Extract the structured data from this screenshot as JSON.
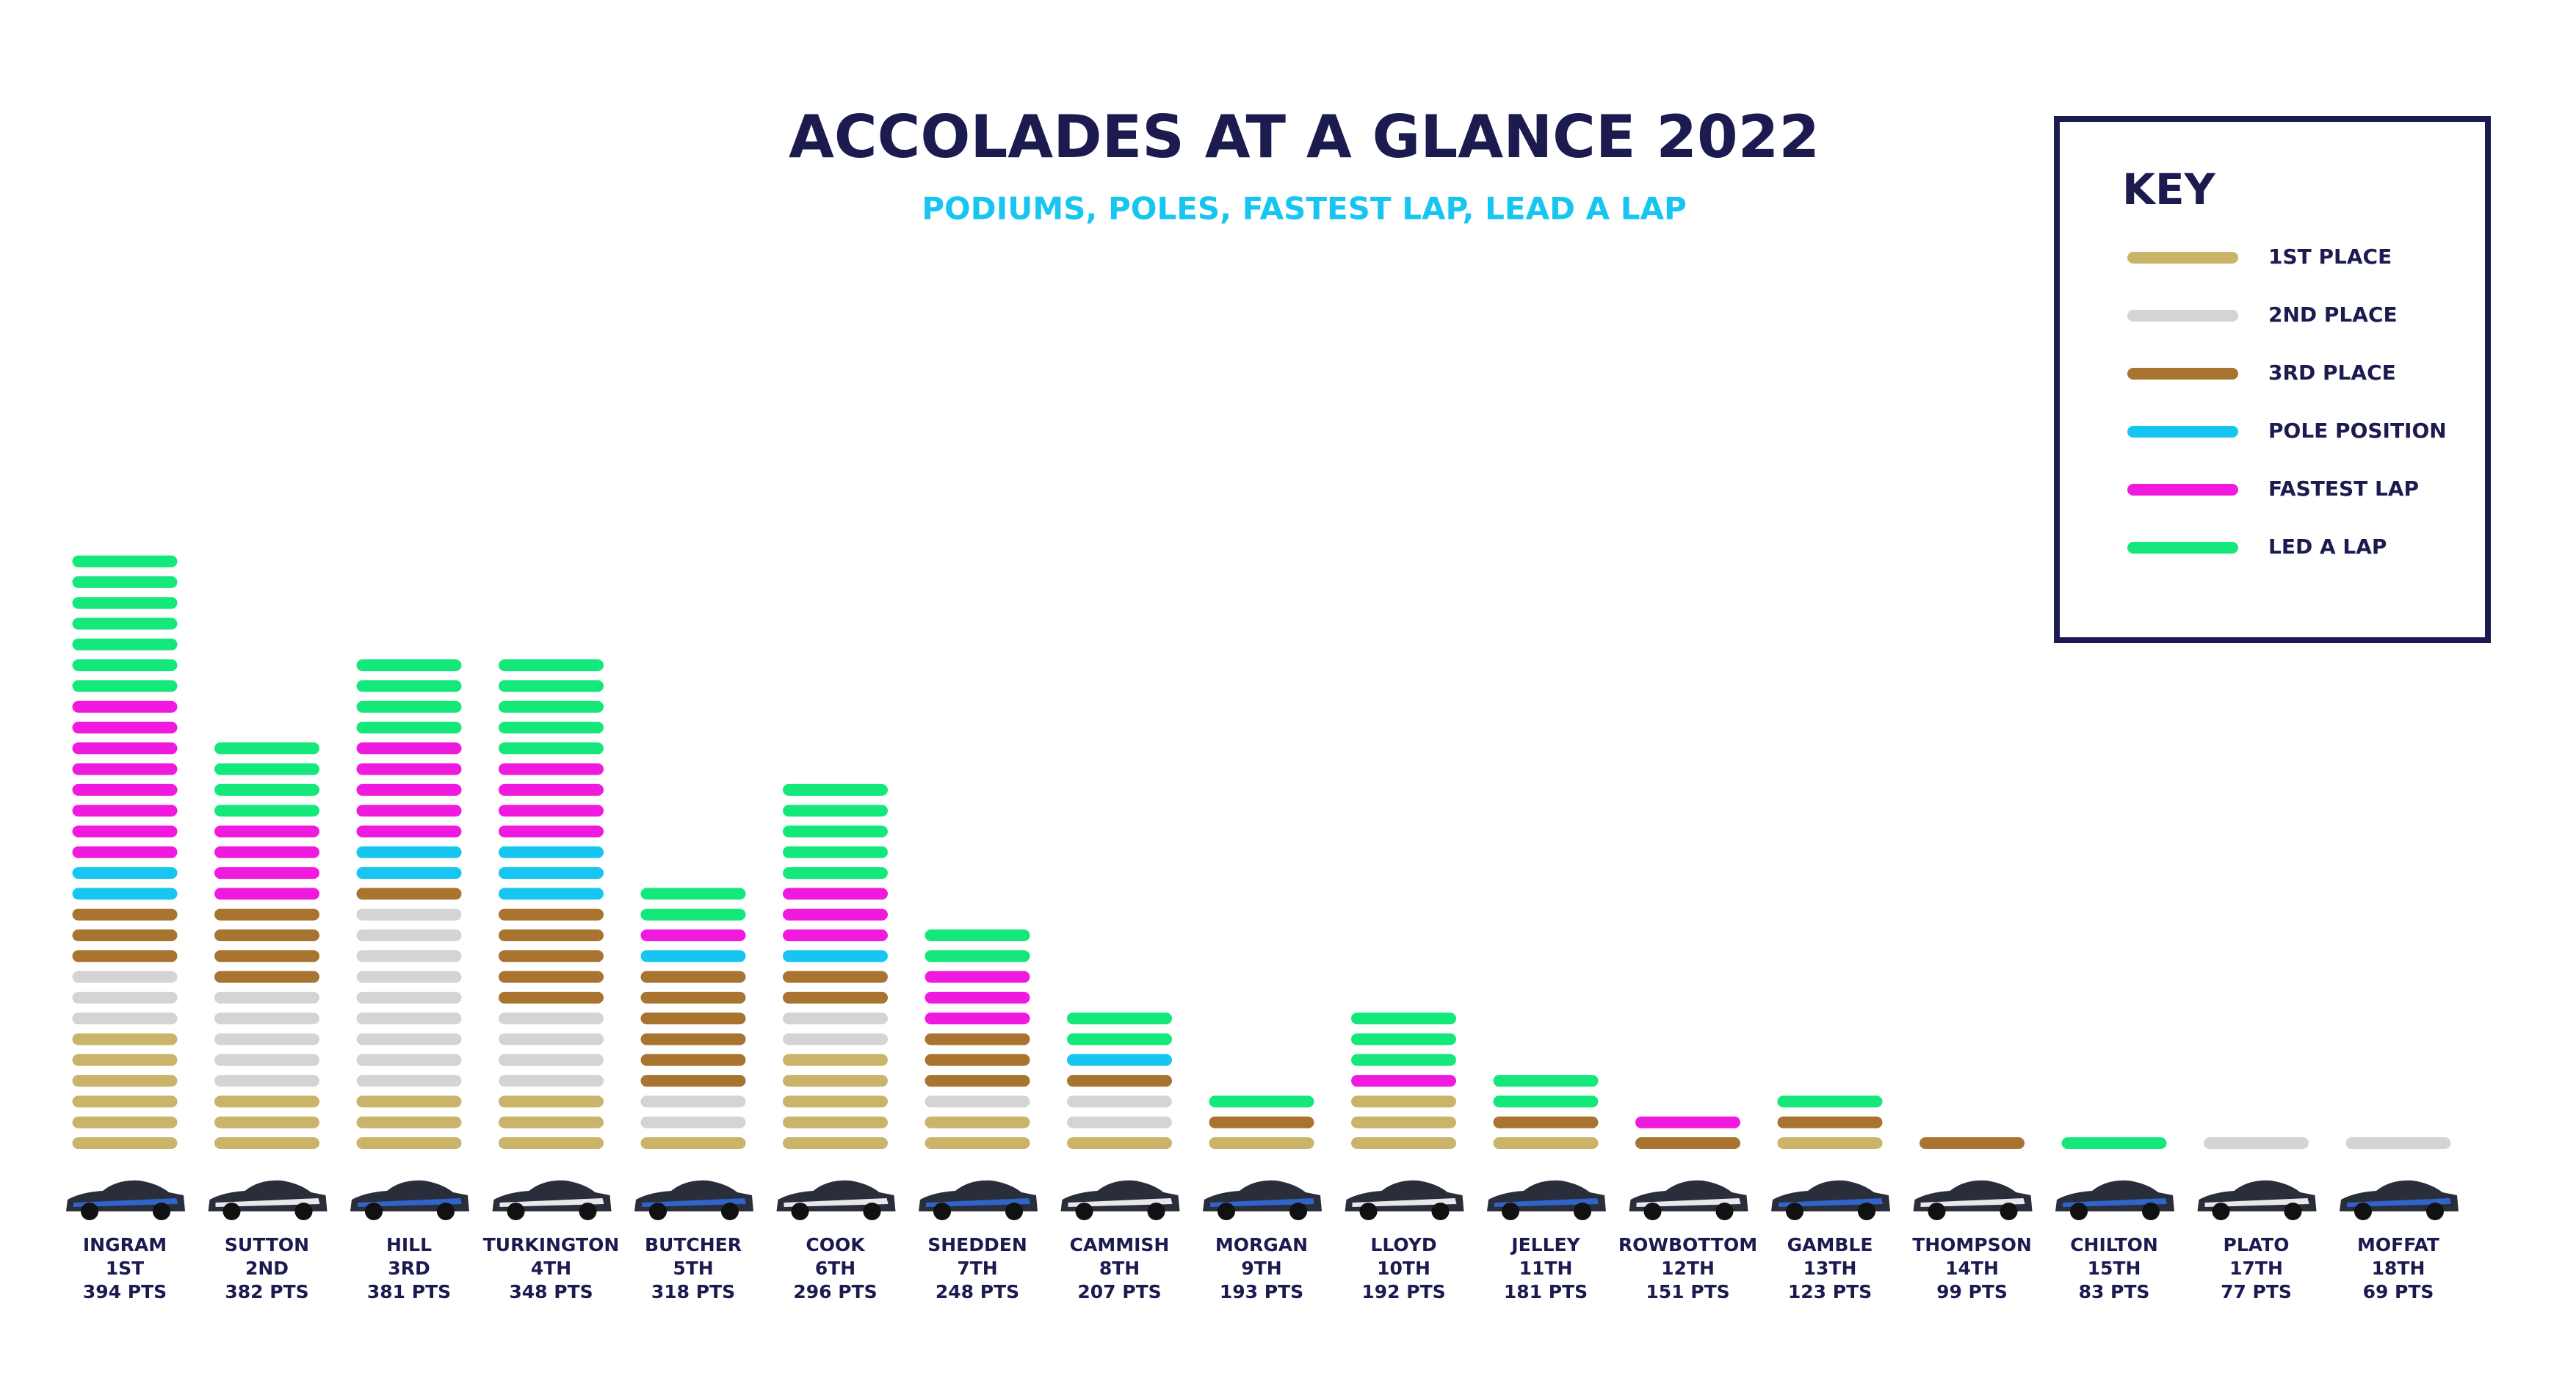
{
  "chart_data": {
    "type": "pictogram",
    "title": "ACCOLADES AT A GLANCE 2022",
    "subtitle": "PODIUMS, POLES, FASTEST LAP, LEAD A LAP",
    "legend_title": "KEY",
    "legend_position": "top-right",
    "categories": [
      "INGRAM",
      "SUTTON",
      "HILL",
      "TURKINGTON",
      "BUTCHER",
      "COOK",
      "SHEDDEN",
      "CAMMISH",
      "MORGAN",
      "LLOYD",
      "JELLEY",
      "ROWBOTTOM",
      "GAMBLE",
      "THOMPSON",
      "CHILTON",
      "PLATO",
      "MOFFAT"
    ],
    "positions": [
      "1ST",
      "2ND",
      "3RD",
      "4TH",
      "5TH",
      "6TH",
      "7TH",
      "8TH",
      "9TH",
      "10TH",
      "11TH",
      "12TH",
      "13TH",
      "14TH",
      "15TH",
      "17TH",
      "18TH"
    ],
    "points": [
      "394 PTS",
      "382 PTS",
      "381 PTS",
      "348 PTS",
      "318 PTS",
      "296 PTS",
      "248 PTS",
      "207 PTS",
      "193 PTS",
      "192 PTS",
      "181 PTS",
      "151 PTS",
      "123 PTS",
      "99 PTS",
      "83 PTS",
      "77 PTS",
      "69 PTS"
    ],
    "series": [
      {
        "name": "1ST PLACE",
        "color": "#c9b46a",
        "values": [
          6,
          3,
          3,
          3,
          1,
          5,
          2,
          1,
          1,
          3,
          1,
          0,
          1,
          0,
          0,
          0,
          0
        ]
      },
      {
        "name": "2ND PLACE",
        "color": "#d4d4d4",
        "values": [
          3,
          5,
          9,
          4,
          2,
          2,
          1,
          2,
          0,
          0,
          0,
          0,
          0,
          0,
          0,
          1,
          1
        ]
      },
      {
        "name": "3RD PLACE",
        "color": "#a8742f",
        "values": [
          3,
          4,
          1,
          5,
          6,
          2,
          3,
          1,
          1,
          0,
          1,
          1,
          1,
          1,
          0,
          0,
          0
        ]
      },
      {
        "name": "POLE POSITION",
        "color": "#16c6f0",
        "values": [
          2,
          0,
          2,
          3,
          1,
          1,
          0,
          1,
          0,
          0,
          0,
          0,
          0,
          0,
          0,
          0,
          0
        ]
      },
      {
        "name": "FASTEST LAP",
        "color": "#f01ade",
        "values": [
          8,
          4,
          5,
          4,
          1,
          3,
          3,
          0,
          0,
          1,
          0,
          1,
          0,
          0,
          0,
          0,
          0
        ]
      },
      {
        "name": "LED A LAP",
        "color": "#15e87a",
        "values": [
          7,
          4,
          4,
          5,
          2,
          5,
          2,
          2,
          1,
          3,
          2,
          0,
          1,
          0,
          1,
          0,
          0
        ]
      }
    ]
  }
}
